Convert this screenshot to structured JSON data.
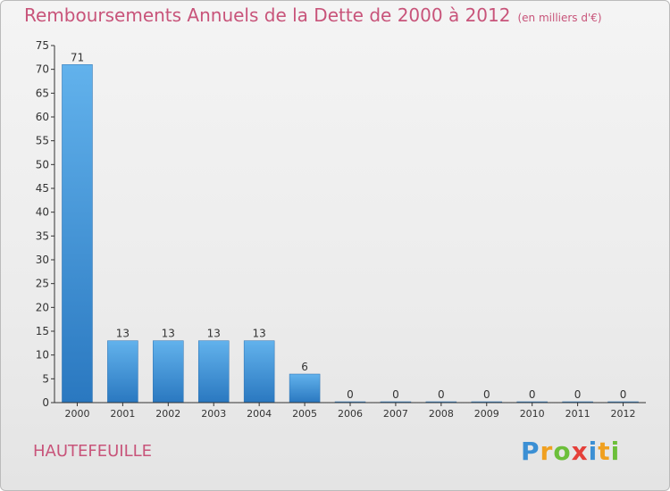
{
  "header": {
    "title": "Remboursements Annuels de la Dette de 2000 à 2012",
    "subtitle": "(en milliers d'€)"
  },
  "footer": {
    "commune": "HAUTEFEUILLE",
    "brand": [
      "P",
      "r",
      "o",
      "x",
      "i",
      "t",
      "i"
    ],
    "brand_colors": [
      "#3b8fd4",
      "#f0a020",
      "#6cbf3a",
      "#e5403a",
      "#3b8fd4",
      "#f0a020",
      "#6cbf3a"
    ]
  },
  "colors": {
    "bar_top": "#62b2ec",
    "bar_bottom": "#2a78c0",
    "axis": "#333333",
    "grid": "#cccccc"
  },
  "chart_data": {
    "type": "bar",
    "categories": [
      "2000",
      "2001",
      "2002",
      "2003",
      "2004",
      "2005",
      "2006",
      "2007",
      "2008",
      "2009",
      "2010",
      "2011",
      "2012"
    ],
    "values": [
      71,
      13,
      13,
      13,
      13,
      6,
      0,
      0,
      0,
      0,
      0,
      0,
      0
    ],
    "data_labels": [
      "71",
      "13",
      "13",
      "13",
      "13",
      "6",
      "0",
      "0",
      "0",
      "0",
      "0",
      "0",
      "0"
    ],
    "ylim": [
      0,
      75
    ],
    "yticks": [
      0,
      5,
      10,
      15,
      20,
      25,
      30,
      35,
      40,
      45,
      50,
      55,
      60,
      65,
      70,
      75
    ],
    "title": "Remboursements Annuels de la Dette de 2000 à 2012",
    "xlabel": "",
    "ylabel": "",
    "grid": false,
    "legend": "none"
  }
}
